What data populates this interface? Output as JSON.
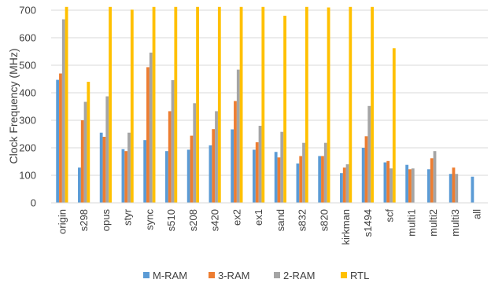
{
  "chart_data": {
    "type": "bar",
    "title": "",
    "xlabel": "",
    "ylabel": "Clock Frequency (MHz)",
    "ylim": [
      0,
      700
    ],
    "yticks": [
      0,
      100,
      200,
      300,
      400,
      500,
      600,
      700
    ],
    "grid": "horizontal",
    "legend_position": "bottom",
    "categories": [
      "origin",
      "s298",
      "opus",
      "styr",
      "sync",
      "s510",
      "s208",
      "s420",
      "ex2",
      "ex1",
      "sand",
      "s832",
      "s820",
      "kirkman",
      "s1494",
      "scf",
      "multi1",
      "multi2",
      "multi3",
      "all"
    ],
    "series": [
      {
        "name": "M-RAM",
        "color": "#5B9BD5",
        "values": [
          447,
          128,
          255,
          195,
          228,
          188,
          193,
          209,
          267,
          193,
          185,
          143,
          170,
          108,
          200,
          147,
          138,
          122,
          105,
          95
        ]
      },
      {
        "name": "3-RAM",
        "color": "#ED7D31",
        "values": [
          470,
          300,
          240,
          188,
          493,
          333,
          244,
          268,
          370,
          220,
          165,
          170,
          170,
          128,
          242,
          152,
          122,
          162,
          128,
          null
        ]
      },
      {
        "name": "2-RAM",
        "color": "#A5A5A5",
        "values": [
          667,
          367,
          387,
          255,
          546,
          446,
          362,
          333,
          484,
          280,
          258,
          218,
          218,
          140,
          352,
          125,
          125,
          188,
          105,
          null
        ]
      },
      {
        "name": "RTL",
        "color": "#FFC000",
        "values": [
          712,
          440,
          712,
          702,
          712,
          712,
          712,
          712,
          712,
          712,
          680,
          712,
          710,
          712,
          712,
          562,
          null,
          null,
          null,
          null
        ]
      }
    ]
  }
}
